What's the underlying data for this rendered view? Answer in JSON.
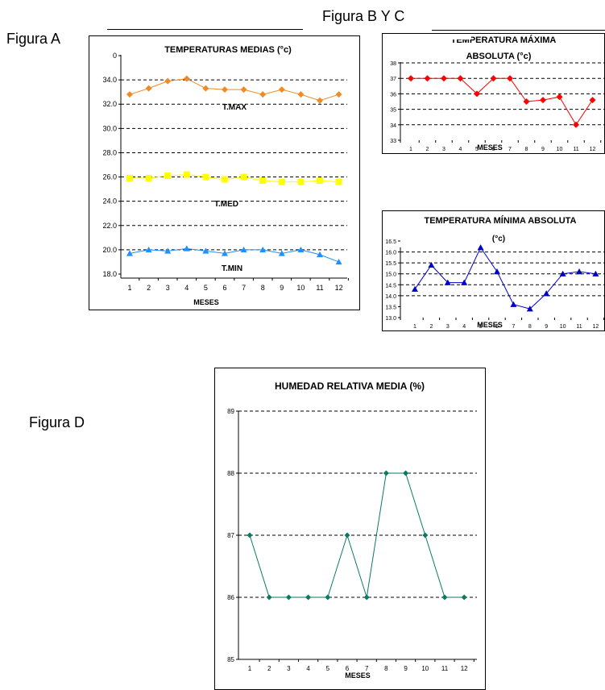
{
  "labels": {
    "figura_a": "Figura A",
    "figura_bc": "Figura B Y C",
    "figura_d": "Figura D"
  },
  "charts": {
    "a": {
      "type": "line",
      "title": "TEMPERATURAS MEDIAS (°c)",
      "xlabel": "MESES",
      "categories": [
        "1",
        "2",
        "3",
        "4",
        "5",
        "6",
        "7",
        "8",
        "9",
        "10",
        "11",
        "12"
      ],
      "yticks": [
        "18.0",
        "20.0",
        "22.0",
        "24.0",
        "26.0",
        "28.0",
        "30.0",
        "32.0",
        "34.0",
        "0"
      ],
      "ylim": [
        18,
        36
      ],
      "series": [
        {
          "name": "T.MAX",
          "color": "#f08a24",
          "marker": "diamond",
          "values": [
            32.8,
            33.3,
            33.9,
            34.1,
            33.3,
            33.2,
            33.2,
            32.8,
            33.2,
            32.8,
            32.3,
            32.8
          ]
        },
        {
          "name": "T.MED",
          "color": "#ffff00",
          "marker": "square",
          "values": [
            25.9,
            25.9,
            26.1,
            26.2,
            26.0,
            25.8,
            26.0,
            25.7,
            25.6,
            25.6,
            25.7,
            25.6
          ]
        },
        {
          "name": "T.MIN",
          "color": "#1e90ff",
          "marker": "triangle",
          "values": [
            19.7,
            20.0,
            19.9,
            20.1,
            19.9,
            19.7,
            20.0,
            20.0,
            19.7,
            20.0,
            19.6,
            19.0
          ]
        }
      ]
    },
    "b": {
      "type": "line",
      "title_line1": "TEMPERATURA MÁXIMA",
      "title_line2": "ABSOLUTA (°c)",
      "xlabel": "MESES",
      "categories": [
        "1",
        "2",
        "3",
        "4",
        "5",
        "6",
        "7",
        "8",
        "9",
        "10",
        "11",
        "12"
      ],
      "yticks": [
        "33",
        "34",
        "35",
        "36",
        "37",
        "38"
      ],
      "ylim": [
        33,
        38
      ],
      "series": [
        {
          "name": "",
          "color": "#ff0000",
          "marker": "diamond",
          "values": [
            37,
            37,
            37,
            37,
            36,
            37,
            37,
            35.5,
            35.6,
            35.8,
            34,
            35.6
          ]
        }
      ]
    },
    "c": {
      "type": "line",
      "title_line1": "TEMPERATURA MÍNIMA ABSOLUTA",
      "title_line2": "(°c)",
      "xlabel": "MESES",
      "categories": [
        "1",
        "2",
        "3",
        "4",
        "5",
        "6",
        "7",
        "8",
        "9",
        "10",
        "11",
        "12"
      ],
      "yticks": [
        "13.0",
        "13.5",
        "14.0",
        "14.5",
        "15.0",
        "15.5",
        "16.0",
        "16.5"
      ],
      "ylim": [
        13,
        16.5
      ],
      "series": [
        {
          "name": "",
          "color": "#0000cc",
          "marker": "triangle",
          "values": [
            14.3,
            15.4,
            14.6,
            14.6,
            16.2,
            15.1,
            13.6,
            13.4,
            14.1,
            15.0,
            15.1,
            15.0
          ]
        }
      ]
    },
    "d": {
      "type": "line",
      "title": "HUMEDAD RELATIVA MEDIA (%)",
      "xlabel": "MESES",
      "categories": [
        "1",
        "2",
        "3",
        "4",
        "5",
        "6",
        "7",
        "8",
        "9",
        "10",
        "11",
        "12"
      ],
      "yticks": [
        "85",
        "86",
        "87",
        "88",
        "89"
      ],
      "ylim": [
        85,
        89
      ],
      "series": [
        {
          "name": "",
          "color": "#0b7a62",
          "marker": "diamond",
          "values": [
            87,
            86,
            86,
            86,
            86,
            87,
            86,
            88,
            88,
            87,
            86,
            86
          ]
        }
      ]
    }
  }
}
